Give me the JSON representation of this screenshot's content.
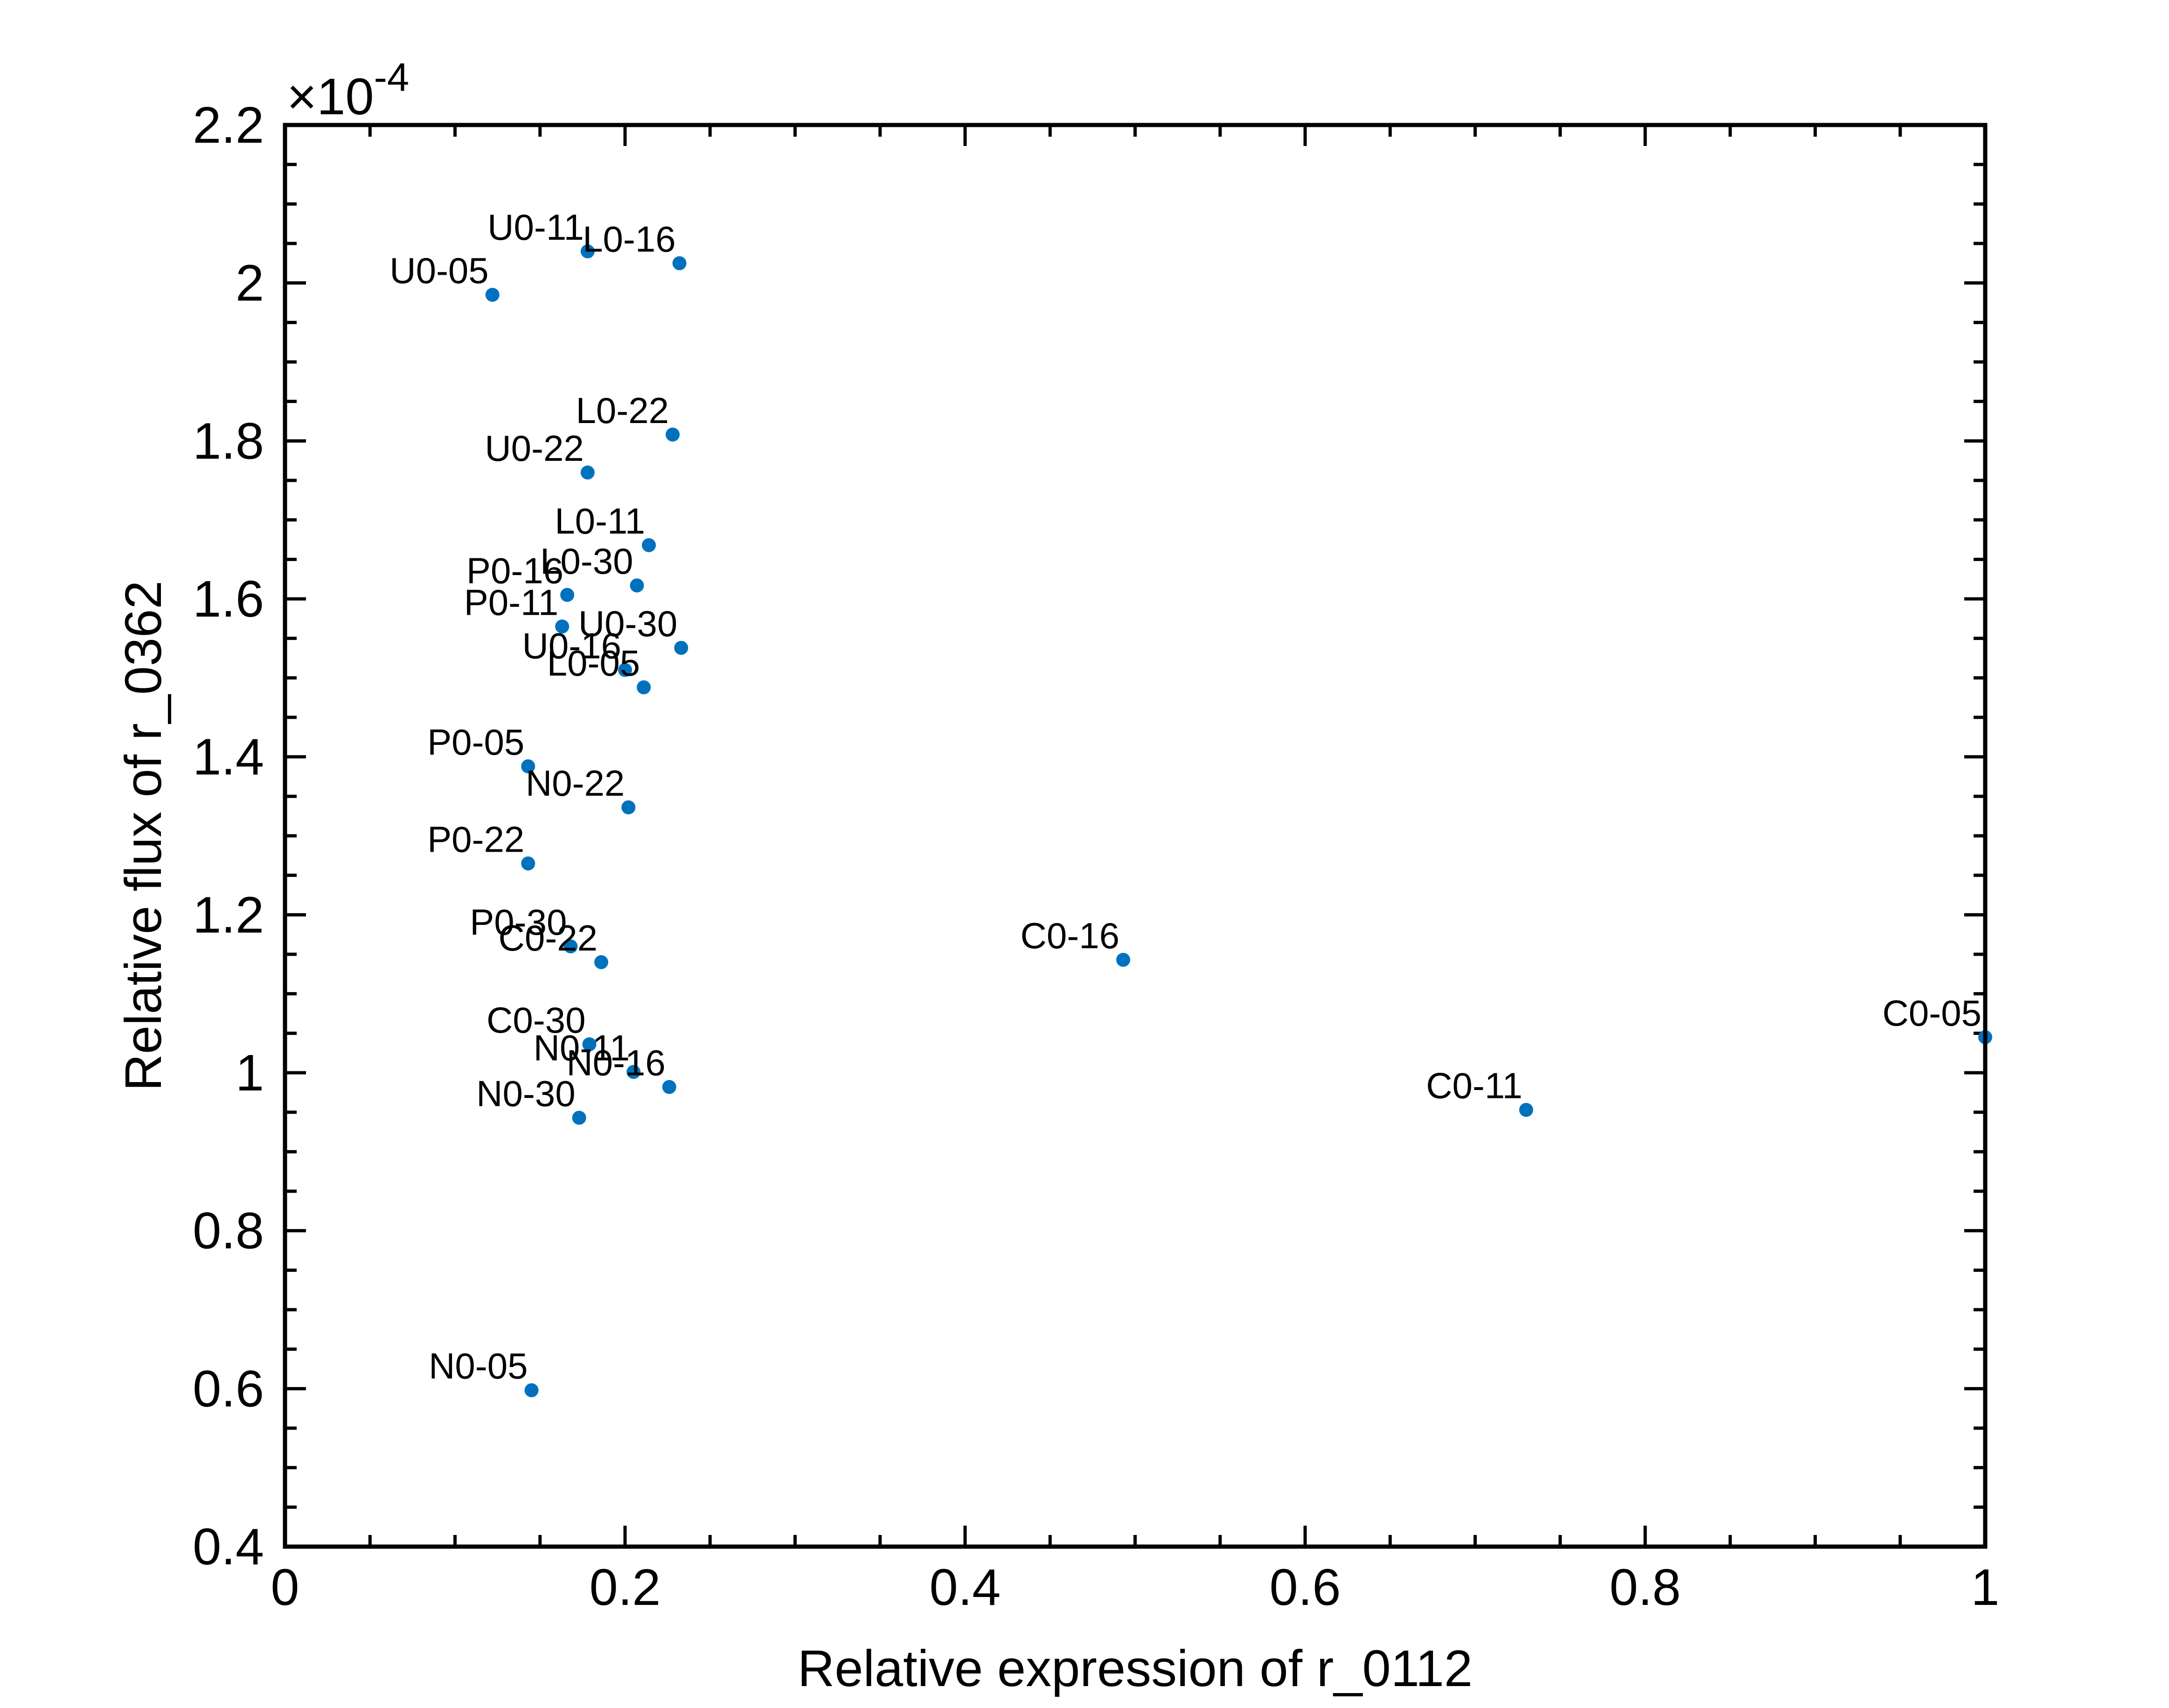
{
  "chart_data": {
    "type": "scatter",
    "xlabel": "Relative expression of r_0112",
    "ylabel": "Relative flux of r_0362",
    "y_scale_factor": "×10",
    "y_scale_exponent": "-4",
    "xlim": [
      0,
      1
    ],
    "ylim": [
      0.4,
      2.2
    ],
    "xticks": [
      0,
      0.2,
      0.4,
      0.6,
      0.8,
      1
    ],
    "xtick_labels": [
      "0",
      "0.2",
      "0.4",
      "0.6",
      "0.8",
      "1"
    ],
    "yticks": [
      0.4,
      0.6,
      0.8,
      1.0,
      1.2,
      1.4,
      1.6,
      1.8,
      2.0,
      2.2
    ],
    "ytick_labels": [
      "0.4",
      "0.6",
      "0.8",
      "1",
      "1.2",
      "1.4",
      "1.6",
      "1.8",
      "2",
      "2.2"
    ],
    "grid": false,
    "marker_color": "#0072BD",
    "points": [
      {
        "label": "U0-11",
        "x": 0.178,
        "y": 2.04
      },
      {
        "label": "L0-16",
        "x": 0.232,
        "y": 2.025
      },
      {
        "label": "U0-05",
        "x": 0.122,
        "y": 1.985
      },
      {
        "label": "L0-22",
        "x": 0.228,
        "y": 1.808
      },
      {
        "label": "U0-22",
        "x": 0.178,
        "y": 1.76
      },
      {
        "label": "L0-11",
        "x": 0.214,
        "y": 1.668
      },
      {
        "label": "L0-30",
        "x": 0.207,
        "y": 1.617
      },
      {
        "label": "P0-16",
        "x": 0.166,
        "y": 1.605
      },
      {
        "label": "P0-11",
        "x": 0.163,
        "y": 1.565
      },
      {
        "label": "U0-30",
        "x": 0.233,
        "y": 1.538
      },
      {
        "label": "U0-16",
        "x": 0.2,
        "y": 1.51
      },
      {
        "label": "L0-05",
        "x": 0.211,
        "y": 1.488
      },
      {
        "label": "P0-05",
        "x": 0.143,
        "y": 1.388
      },
      {
        "label": "N0-22",
        "x": 0.202,
        "y": 1.336
      },
      {
        "label": "P0-22",
        "x": 0.143,
        "y": 1.265
      },
      {
        "label": "P0-30",
        "x": 0.168,
        "y": 1.16
      },
      {
        "label": "C0-22",
        "x": 0.186,
        "y": 1.14
      },
      {
        "label": "C0-16",
        "x": 0.493,
        "y": 1.143
      },
      {
        "label": "C0-05",
        "x": 1.0,
        "y": 1.045
      },
      {
        "label": "C0-30",
        "x": 0.179,
        "y": 1.036
      },
      {
        "label": "N0-11",
        "x": 0.205,
        "y": 1.001
      },
      {
        "label": "N0-16",
        "x": 0.226,
        "y": 0.982
      },
      {
        "label": "C0-11",
        "x": 0.73,
        "y": 0.953
      },
      {
        "label": "N0-30",
        "x": 0.173,
        "y": 0.943
      },
      {
        "label": "N0-05",
        "x": 0.145,
        "y": 0.598
      }
    ]
  }
}
